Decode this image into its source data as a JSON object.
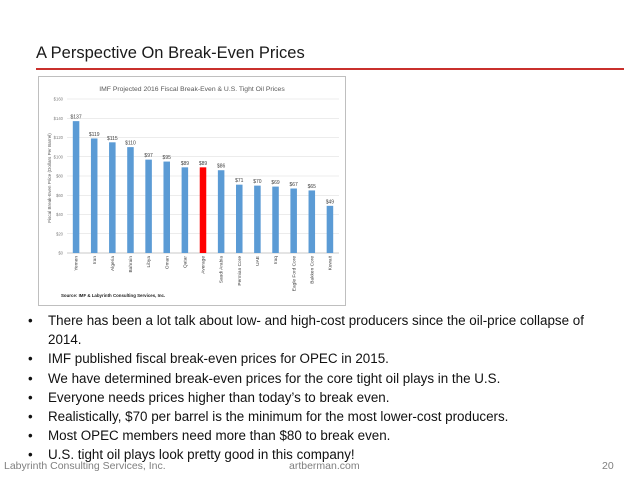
{
  "slide": {
    "title": "A Perspective On Break-Even Prices",
    "accent_color": "#c9302c"
  },
  "chart_data": {
    "type": "bar",
    "title": "IMF Projected 2016 Fiscal Break-Even & U.S. Tight Oil Prices",
    "ylabel": "Fiscal Break-Even Price (Dollars Per Barrel)",
    "source": "Source: IMF & Labyrinth Consulting Services, Inc.",
    "categories": [
      "Yemen",
      "Iran",
      "Algeria",
      "Bahrain",
      "Libya",
      "Oman",
      "Qatar",
      "Average",
      "Saudi Arabia",
      "Permian Core",
      "UAE",
      "Iraq",
      "Eagle Ford Core",
      "Bakken Core",
      "Kuwait"
    ],
    "values": [
      137,
      119,
      115,
      110,
      97,
      95,
      89,
      89,
      86,
      71,
      70,
      69,
      67,
      65,
      49
    ],
    "value_labels": [
      "$137",
      "$119",
      "$115",
      "$110",
      "$97",
      "$95",
      "$89",
      "$89",
      "$86",
      "$71",
      "$70",
      "$69",
      "$67",
      "$65",
      "$49"
    ],
    "highlight_index": 7,
    "bar_color": "#5b9bd5",
    "highlight_color": "#ff0000",
    "ylim": [
      0,
      160
    ],
    "yticks": [
      0,
      20,
      40,
      60,
      80,
      100,
      120,
      140,
      160
    ],
    "ytick_labels": [
      "$0",
      "$20",
      "$40",
      "$60",
      "$80",
      "$100",
      "$120",
      "$140",
      "$160"
    ],
    "grid": true
  },
  "bullets": [
    "There has been a lot talk about low- and high-cost producers since the oil-price collapse of 2014.",
    "IMF published fiscal break-even prices for OPEC in 2015.",
    "We have determined break-even prices for the core tight oil plays in the U.S.",
    "Everyone needs prices higher than today’s to break even.",
    "Realistically, $70 per barrel is the minimum for the most lower-cost producers.",
    "Most OPEC members need more than $80 to break even.",
    "U.S. tight oil plays look pretty good in this company!"
  ],
  "bullet_glyph": "•",
  "footer": {
    "company": "Labyrinth Consulting Services, Inc.",
    "site": "artberman.com",
    "page": "20"
  }
}
